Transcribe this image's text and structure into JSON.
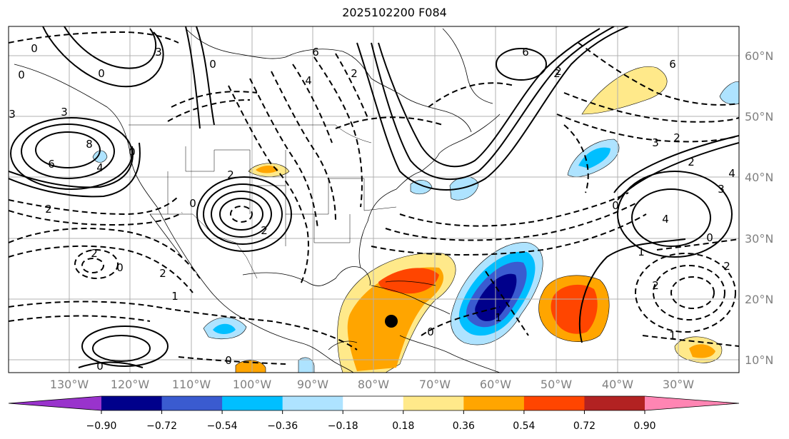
{
  "title": "2025102200 F084",
  "lat_labels": [
    "60°N",
    "50°N",
    "40°N",
    "30°N",
    "20°N",
    "10°N"
  ],
  "lon_labels": [
    "130°W",
    "120°W",
    "110°W",
    "100°W",
    "90°W",
    "80°W",
    "70°W",
    "60°W",
    "50°W",
    "40°W",
    "30°W"
  ],
  "contour_labels": [
    "0",
    "3",
    "0",
    "2",
    "6",
    "4",
    "2",
    "6",
    "2",
    "6",
    "0",
    "3",
    "8",
    "6",
    "3",
    "4",
    "2",
    "0",
    "2",
    "0",
    "2",
    "3",
    "4",
    "2",
    "0",
    "1",
    "0",
    "2",
    "2",
    "1",
    "0",
    "0",
    "0",
    "1",
    "2",
    "2",
    "0",
    "1",
    "4",
    "3",
    "2",
    "0"
  ],
  "colorbar": {
    "ticks": [
      "−0.90",
      "−0.72",
      "−0.54",
      "−0.36",
      "−0.18",
      "0.18",
      "0.36",
      "0.54",
      "0.72",
      "0.90"
    ],
    "colors": [
      "#9933cc",
      "#00008b",
      "#3a5bd0",
      "#00bfff",
      "#aee3ff",
      "#ffffff",
      "#ffe98a",
      "#ffa500",
      "#ff4500",
      "#b22222",
      "#ff85b3"
    ]
  }
}
